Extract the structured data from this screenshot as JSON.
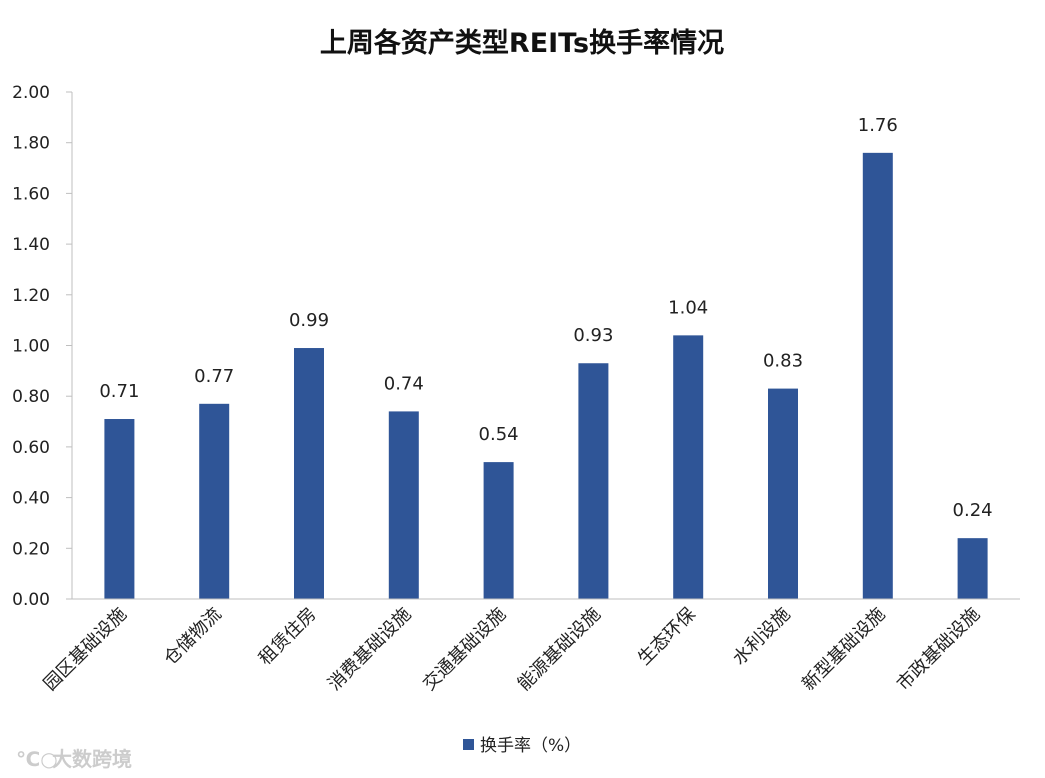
{
  "chart_data": {
    "type": "bar",
    "title": "上周各资产类型REITs换手率情况",
    "categories": [
      "园区基础设施",
      "仓储物流",
      "租赁住房",
      "消费基础设施",
      "交通基础设施",
      "能源基础设施",
      "生态环保",
      "水利设施",
      "新型基础设施",
      "市政基础设施"
    ],
    "series": [
      {
        "name": "换手率（%）",
        "values": [
          0.71,
          0.77,
          0.99,
          0.74,
          0.54,
          0.93,
          1.04,
          0.83,
          1.76,
          0.24
        ],
        "color": "#2f5597"
      }
    ],
    "data_labels": [
      "0.71",
      "0.77",
      "0.99",
      "0.74",
      "0.54",
      "0.93",
      "1.04",
      "0.83",
      "1.76",
      "0.24"
    ],
    "yticks": [
      "0.00",
      "0.20",
      "0.40",
      "0.60",
      "0.80",
      "1.00",
      "1.20",
      "1.40",
      "1.60",
      "1.80",
      "2.00"
    ],
    "ylim": [
      0,
      2.0
    ],
    "xlabel": "",
    "ylabel": "",
    "grid": false,
    "legend_position": "bottom"
  },
  "watermark": "大数跨境"
}
